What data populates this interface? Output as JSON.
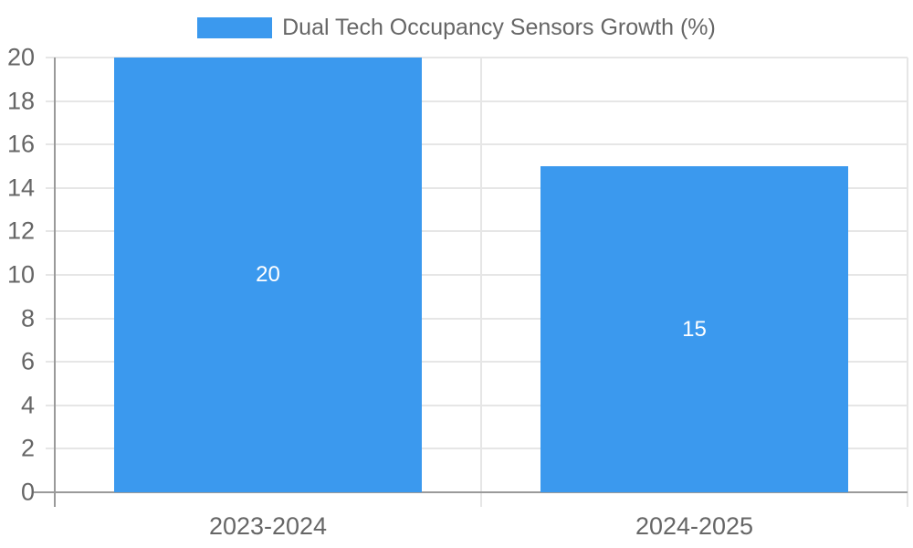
{
  "chart_data": {
    "type": "bar",
    "title": "Dual Tech Occupancy Sensors Growth (%)",
    "categories": [
      "2023-2024",
      "2024-2025"
    ],
    "values": [
      20,
      15
    ],
    "bar_value_labels": [
      "20",
      "15"
    ],
    "xlabel": "",
    "ylabel": "",
    "ylim": [
      0,
      20
    ],
    "yticks": [
      0,
      2,
      4,
      6,
      8,
      10,
      12,
      14,
      16,
      18,
      20
    ],
    "grid": "on",
    "legend_position": "top-center",
    "colors": {
      "bar": "#3b99ee",
      "axis": "#9a9a9a",
      "gridline": "#e6e6e6",
      "tick_text": "#666666",
      "legend_text": "#666666",
      "bar_value_text": "#ffffff",
      "background": "#ffffff"
    }
  }
}
